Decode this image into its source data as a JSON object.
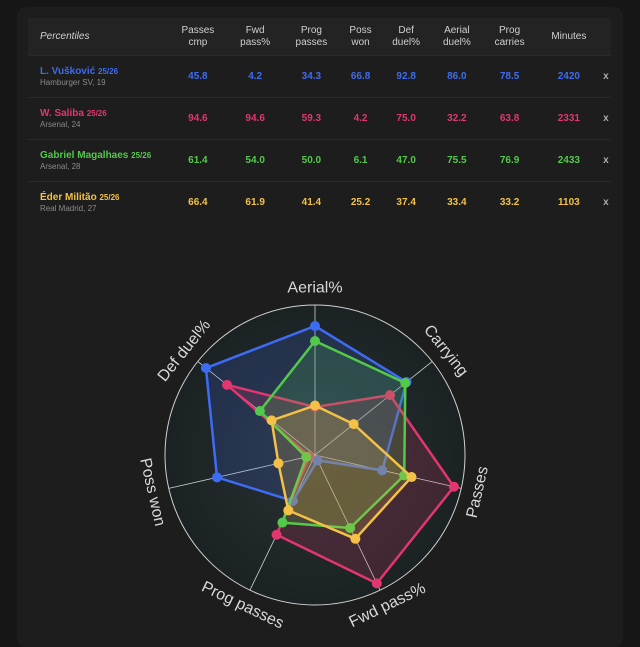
{
  "table": {
    "corner_label": "Percentiles",
    "columns": [
      [
        "Passes",
        "cmp"
      ],
      [
        "Fwd",
        "pass%"
      ],
      [
        "Prog",
        "passes"
      ],
      [
        "Poss",
        "won"
      ],
      [
        "Def",
        "duel%"
      ],
      [
        "Aerial",
        "duel%"
      ],
      [
        "Prog",
        "carries"
      ],
      [
        "Minutes",
        ""
      ]
    ],
    "remove_label": "x",
    "players": [
      {
        "name": "L. Vušković",
        "season": "25/26",
        "club": "Hamburger SV, 19",
        "color": "#3d6cf2",
        "values": [
          "45.8",
          "4.2",
          "34.3",
          "66.8",
          "92.8",
          "86.0",
          "78.5",
          "2420"
        ]
      },
      {
        "name": "W. Saliba",
        "season": "25/26",
        "club": "Arsenal, 24",
        "color": "#e2366f",
        "values": [
          "94.6",
          "94.6",
          "59.3",
          "4.2",
          "75.0",
          "32.2",
          "63.8",
          "2331"
        ]
      },
      {
        "name": "Gabriel Magalhaes",
        "season": "25/26",
        "club": "Arsenal, 28",
        "color": "#52c94a",
        "values": [
          "61.4",
          "54.0",
          "50.0",
          "6.1",
          "47.0",
          "75.5",
          "76.9",
          "2433"
        ]
      },
      {
        "name": "Éder Militão",
        "season": "25/26",
        "club": "Real Madrid, 27",
        "color": "#f4c146",
        "values": [
          "66.4",
          "61.9",
          "41.4",
          "25.2",
          "37.4",
          "33.4",
          "33.2",
          "1103"
        ]
      }
    ]
  },
  "chart_data": {
    "type": "radar",
    "axes": [
      "Aerial%",
      "Carrying",
      "Passes",
      "Fwd pass%",
      "Prog passes",
      "Poss won",
      "Def duel%"
    ],
    "range": [
      0,
      100
    ],
    "series": [
      {
        "name": "L. Vušković",
        "color": "#3d6cf2",
        "values": [
          86,
          78,
          46,
          4,
          34,
          67,
          93
        ]
      },
      {
        "name": "W. Saliba",
        "color": "#e2366f",
        "values": [
          32,
          64,
          95,
          95,
          59,
          4,
          75
        ]
      },
      {
        "name": "Gabriel Magalhaes",
        "color": "#52c94a",
        "values": [
          76,
          77,
          61,
          54,
          50,
          6,
          47
        ]
      },
      {
        "name": "Éder Militão",
        "color": "#f4c146",
        "values": [
          33,
          33,
          66,
          62,
          41,
          25,
          37
        ]
      }
    ]
  }
}
